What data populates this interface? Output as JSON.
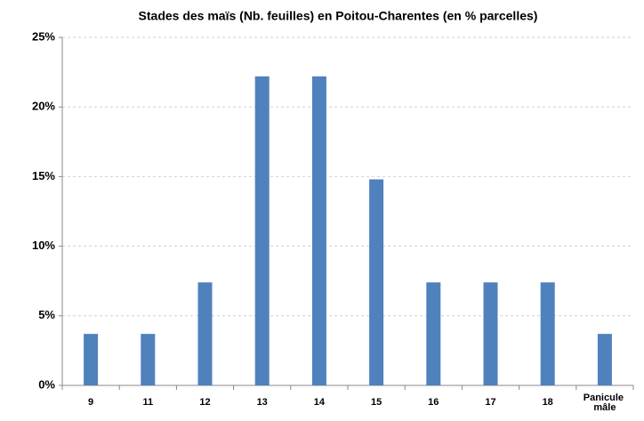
{
  "chart_data": {
    "type": "bar",
    "title": "Stades des maïs (Nb. feuilles) en Poitou-Charentes (en % parcelles)",
    "categories": [
      "9",
      "11",
      "12",
      "13",
      "14",
      "15",
      "16",
      "17",
      "18",
      "Panicule mâle"
    ],
    "values": [
      3.7,
      3.7,
      7.4,
      22.2,
      22.2,
      14.8,
      7.4,
      7.4,
      7.4,
      3.7
    ],
    "color": "#4f81bd",
    "ylim": [
      0,
      25
    ],
    "yticks": [
      {
        "value": 0,
        "label": "0%"
      },
      {
        "value": 5,
        "label": "5%"
      },
      {
        "value": 10,
        "label": "10%"
      },
      {
        "value": 15,
        "label": "15%"
      },
      {
        "value": 20,
        "label": "20%"
      },
      {
        "value": 25,
        "label": "25%"
      }
    ],
    "grid": true
  }
}
